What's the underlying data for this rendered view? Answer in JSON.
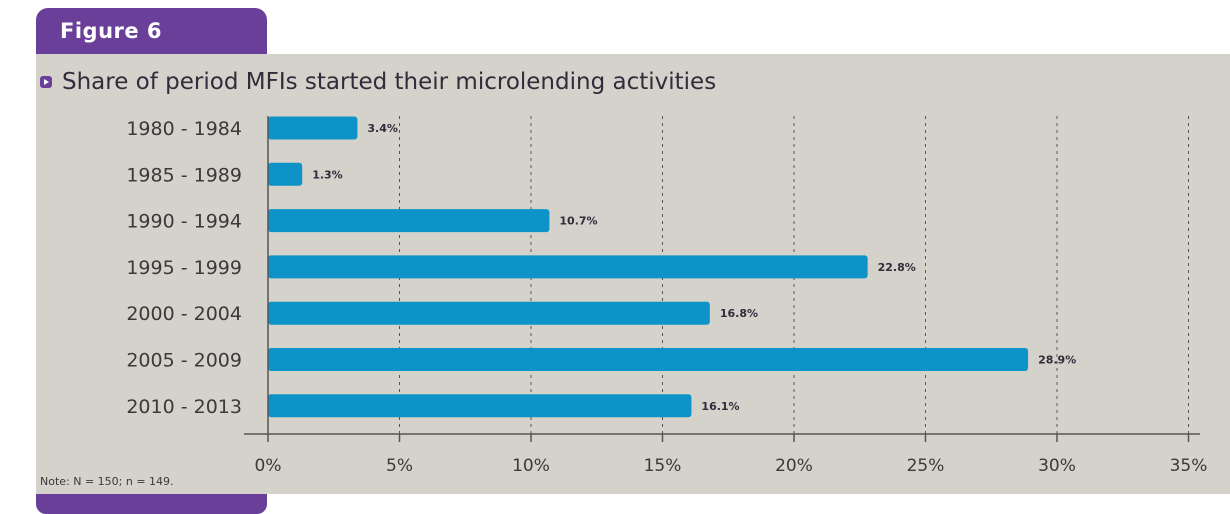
{
  "figure_label": "Figure 6",
  "colors": {
    "bar": "#0e93c8",
    "accent": "#6a3f9a",
    "panel": "#d4d2cb",
    "grid": "#555555"
  },
  "icon": "arrow-right-square-icon",
  "note": "Note: N = 150; n = 149.",
  "chart_data": {
    "type": "bar",
    "orientation": "horizontal",
    "title": "Share of period MFIs started their microlending activities",
    "categories": [
      "1980 - 1984",
      "1985 - 1989",
      "1990 - 1994",
      "1995 - 1999",
      "2000 - 2004",
      "2005 - 2009",
      "2010 - 2013"
    ],
    "values": [
      3.4,
      1.3,
      10.7,
      22.8,
      16.8,
      28.9,
      16.1
    ],
    "data_labels": [
      "3.4%",
      "1.3%",
      "10.7%",
      "22.8%",
      "16.8%",
      "28.9%",
      "16.1%"
    ],
    "xlim": [
      0,
      35
    ],
    "xticks": [
      0,
      5,
      10,
      15,
      20,
      25,
      30,
      35
    ],
    "xtick_labels": [
      "0%",
      "5%",
      "10%",
      "15%",
      "20%",
      "25%",
      "30%",
      "35%"
    ],
    "grid": "vertical dashed",
    "legend": "none"
  }
}
